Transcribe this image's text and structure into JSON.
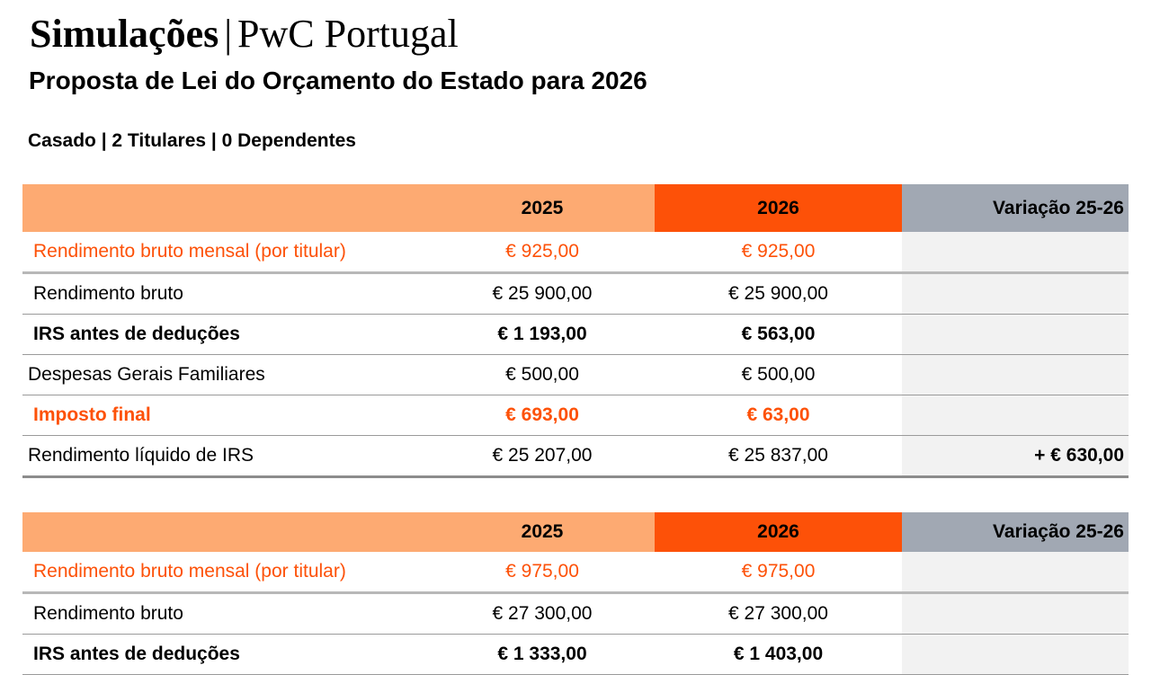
{
  "header": {
    "title_bold": "Simulações",
    "title_separator": "|",
    "title_rest": "PwC Portugal",
    "subtitle": "Proposta de Lei do Orçamento do Estado para 2026",
    "profile": "Casado | 2 Titulares | 0 Dependentes"
  },
  "colors": {
    "light_orange": "#fdaa72",
    "orange": "#fd5108",
    "gray": "#a1a8b3"
  },
  "tables": [
    {
      "columns": [
        "",
        "2025",
        "2026",
        "Variação 25-26"
      ],
      "rows": [
        {
          "label": "Rendimento bruto mensal (por titular)",
          "v2025": "€ 925,00",
          "v2026": "€ 925,00",
          "var": ""
        },
        {
          "label": "Rendimento bruto",
          "v2025": "€ 25 900,00",
          "v2026": "€ 25 900,00",
          "var": ""
        },
        {
          "label": "IRS antes de deduções",
          "v2025": "€ 1 193,00",
          "v2026": "€ 563,00",
          "var": ""
        },
        {
          "label": "Despesas Gerais Familiares",
          "v2025": "€ 500,00",
          "v2026": "€ 500,00",
          "var": ""
        },
        {
          "label": "Imposto final",
          "v2025": "€ 693,00",
          "v2026": "€ 63,00",
          "var": ""
        },
        {
          "label": "Rendimento líquido de IRS",
          "v2025": "€ 25 207,00",
          "v2026": "€ 25 837,00",
          "var": "+ € 630,00"
        }
      ]
    },
    {
      "columns": [
        "",
        "2025",
        "2026",
        "Variação 25-26"
      ],
      "rows": [
        {
          "label": "Rendimento bruto mensal (por titular)",
          "v2025": "€ 975,00",
          "v2026": "€ 975,00",
          "var": ""
        },
        {
          "label": "Rendimento bruto",
          "v2025": "€ 27 300,00",
          "v2026": "€ 27 300,00",
          "var": ""
        },
        {
          "label": "IRS antes de deduções",
          "v2025": "€ 1 333,00",
          "v2026": "€ 1 403,00",
          "var": ""
        }
      ]
    }
  ]
}
